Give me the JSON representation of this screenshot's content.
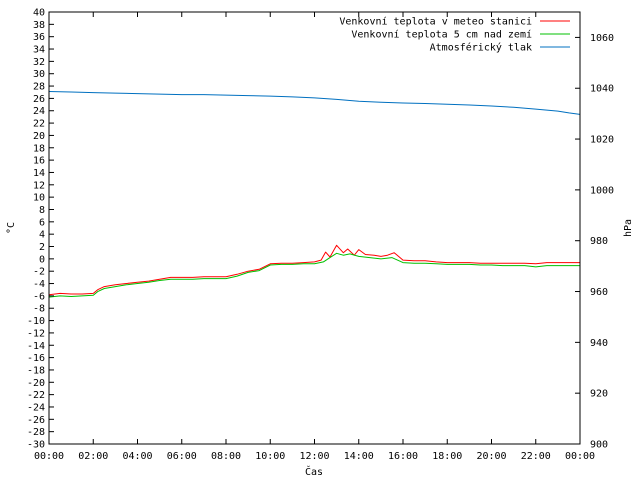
{
  "chart_data": {
    "type": "line",
    "xlabel": "Čas",
    "ylabel_left": "°C",
    "ylabel_right": "hPa",
    "ylim_left": [
      -30,
      40
    ],
    "ylim_right": [
      900,
      1070
    ],
    "xlim_hours": [
      0,
      24
    ],
    "y_left_ticks": [
      40,
      38,
      36,
      34,
      32,
      30,
      28,
      26,
      24,
      22,
      20,
      18,
      16,
      14,
      12,
      10,
      8,
      6,
      4,
      2,
      0,
      -2,
      -4,
      -6,
      -8,
      -10,
      -12,
      -14,
      -16,
      -18,
      -20,
      -22,
      -24,
      -26,
      -28,
      -30
    ],
    "y_right_ticks": [
      1060,
      1040,
      1020,
      1000,
      980,
      960,
      940,
      920,
      900
    ],
    "x_tick_labels": [
      "00:00",
      "02:00",
      "04:00",
      "06:00",
      "08:00",
      "10:00",
      "12:00",
      "14:00",
      "16:00",
      "18:00",
      "20:00",
      "22:00",
      "00:00"
    ],
    "grid": false,
    "legend_position": "top-right",
    "series": [
      {
        "name": "Venkovní teplota v meteo stanici",
        "color": "#ff0000",
        "axis": "left",
        "points": [
          [
            0,
            -5.8
          ],
          [
            0.5,
            -5.6
          ],
          [
            1,
            -5.7
          ],
          [
            1.5,
            -5.7
          ],
          [
            2,
            -5.6
          ],
          [
            2.2,
            -5.0
          ],
          [
            2.5,
            -4.5
          ],
          [
            3,
            -4.2
          ],
          [
            3.5,
            -4.0
          ],
          [
            4,
            -3.8
          ],
          [
            4.5,
            -3.6
          ],
          [
            5,
            -3.3
          ],
          [
            5.5,
            -3.0
          ],
          [
            6,
            -3.0
          ],
          [
            6.5,
            -3.0
          ],
          [
            7,
            -2.9
          ],
          [
            7.5,
            -2.9
          ],
          [
            8,
            -2.9
          ],
          [
            8.5,
            -2.5
          ],
          [
            9,
            -2.0
          ],
          [
            9.5,
            -1.7
          ],
          [
            10,
            -0.8
          ],
          [
            10.5,
            -0.7
          ],
          [
            11,
            -0.7
          ],
          [
            11.5,
            -0.6
          ],
          [
            12,
            -0.5
          ],
          [
            12.3,
            -0.2
          ],
          [
            12.5,
            1.1
          ],
          [
            12.7,
            0.3
          ],
          [
            13,
            2.2
          ],
          [
            13.3,
            1.0
          ],
          [
            13.5,
            1.6
          ],
          [
            13.8,
            0.6
          ],
          [
            14,
            1.5
          ],
          [
            14.3,
            0.7
          ],
          [
            14.7,
            0.6
          ],
          [
            15,
            0.4
          ],
          [
            15.3,
            0.6
          ],
          [
            15.6,
            1.0
          ],
          [
            16,
            -0.2
          ],
          [
            16.5,
            -0.3
          ],
          [
            17,
            -0.3
          ],
          [
            17.5,
            -0.5
          ],
          [
            18,
            -0.6
          ],
          [
            18.5,
            -0.6
          ],
          [
            19,
            -0.6
          ],
          [
            19.5,
            -0.7
          ],
          [
            20,
            -0.7
          ],
          [
            20.5,
            -0.7
          ],
          [
            21,
            -0.7
          ],
          [
            21.5,
            -0.7
          ],
          [
            22,
            -0.8
          ],
          [
            22.5,
            -0.6
          ],
          [
            23,
            -0.6
          ],
          [
            23.5,
            -0.6
          ],
          [
            24,
            -0.6
          ]
        ]
      },
      {
        "name": "Venkovní teplota 5 cm nad zemí",
        "color": "#00c000",
        "axis": "left",
        "points": [
          [
            0,
            -6.2
          ],
          [
            0.5,
            -6.0
          ],
          [
            1,
            -6.1
          ],
          [
            1.5,
            -6.0
          ],
          [
            2,
            -5.9
          ],
          [
            2.2,
            -5.3
          ],
          [
            2.5,
            -4.8
          ],
          [
            3,
            -4.5
          ],
          [
            3.5,
            -4.2
          ],
          [
            4,
            -4.0
          ],
          [
            4.5,
            -3.8
          ],
          [
            5,
            -3.5
          ],
          [
            5.5,
            -3.3
          ],
          [
            6,
            -3.3
          ],
          [
            6.5,
            -3.3
          ],
          [
            7,
            -3.2
          ],
          [
            7.5,
            -3.2
          ],
          [
            8,
            -3.2
          ],
          [
            8.5,
            -2.8
          ],
          [
            9,
            -2.2
          ],
          [
            9.5,
            -1.9
          ],
          [
            10,
            -1.0
          ],
          [
            10.5,
            -0.9
          ],
          [
            11,
            -0.9
          ],
          [
            11.5,
            -0.8
          ],
          [
            12,
            -0.8
          ],
          [
            12.4,
            -0.5
          ],
          [
            12.7,
            0.2
          ],
          [
            13,
            0.9
          ],
          [
            13.3,
            0.6
          ],
          [
            13.6,
            0.8
          ],
          [
            14,
            0.4
          ],
          [
            14.5,
            0.2
          ],
          [
            15,
            0.0
          ],
          [
            15.5,
            0.2
          ],
          [
            16,
            -0.6
          ],
          [
            16.5,
            -0.7
          ],
          [
            17,
            -0.7
          ],
          [
            17.5,
            -0.8
          ],
          [
            18,
            -0.9
          ],
          [
            18.5,
            -0.9
          ],
          [
            19,
            -0.9
          ],
          [
            19.5,
            -1.0
          ],
          [
            20,
            -1.0
          ],
          [
            20.5,
            -1.1
          ],
          [
            21,
            -1.1
          ],
          [
            21.5,
            -1.1
          ],
          [
            22,
            -1.3
          ],
          [
            22.5,
            -1.1
          ],
          [
            23,
            -1.1
          ],
          [
            23.5,
            -1.1
          ],
          [
            24,
            -1.1
          ]
        ]
      },
      {
        "name": "Atmosférický tlak",
        "color": "#0070c0",
        "axis": "right",
        "points": [
          [
            0,
            1038.7
          ],
          [
            1,
            1038.5
          ],
          [
            2,
            1038.3
          ],
          [
            3,
            1038.1
          ],
          [
            4,
            1037.9
          ],
          [
            5,
            1037.7
          ],
          [
            6,
            1037.5
          ],
          [
            7,
            1037.5
          ],
          [
            8,
            1037.3
          ],
          [
            9,
            1037.1
          ],
          [
            10,
            1036.9
          ],
          [
            11,
            1036.6
          ],
          [
            12,
            1036.2
          ],
          [
            13,
            1035.6
          ],
          [
            14,
            1034.9
          ],
          [
            15,
            1034.5
          ],
          [
            16,
            1034.2
          ],
          [
            17,
            1034.0
          ],
          [
            18,
            1033.7
          ],
          [
            19,
            1033.4
          ],
          [
            20,
            1033.0
          ],
          [
            21,
            1032.5
          ],
          [
            22,
            1031.8
          ],
          [
            23,
            1031.0
          ],
          [
            23.5,
            1030.3
          ],
          [
            24,
            1029.7
          ]
        ]
      }
    ]
  }
}
